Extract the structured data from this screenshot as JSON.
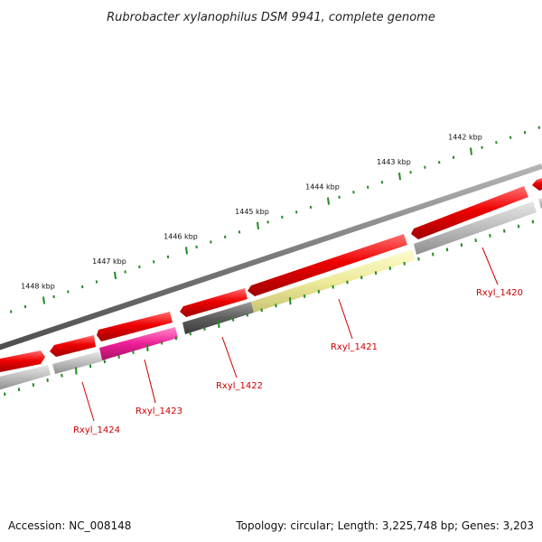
{
  "title": "Rubrobacter xylanophilus DSM 9941, complete genome",
  "footer": {
    "accession": "Accession: NC_008148",
    "summary": "Topology: circular; Length: 3,225,748 bp; Genes: 3,203"
  },
  "colors": {
    "backbone": "#7a7a7a",
    "forward_feature": "#ee0000",
    "tick": "#228b22",
    "gene_label": "#cc0000",
    "gene_gray": "#b8b8b8",
    "gene_dark": "#606060",
    "gene_magenta": "#ee1e96",
    "gene_yellow": "#eeeb9a"
  },
  "scale_labels": [
    "1442 kbp",
    "1443 kbp",
    "1444 kbp",
    "1445 kbp",
    "1446 kbp",
    "1447 kbp",
    "1448 kbp"
  ],
  "genes": [
    {
      "name": "Rxyl_1420",
      "color": "gene_gray"
    },
    {
      "name": "Rxyl_1421",
      "color": "gene_yellow"
    },
    {
      "name": "Rxyl_1422",
      "color": "gene_dark"
    },
    {
      "name": "Rxyl_1423",
      "color": "gene_magenta"
    },
    {
      "name": "Rxyl_1424",
      "color": "gene_gray"
    }
  ]
}
